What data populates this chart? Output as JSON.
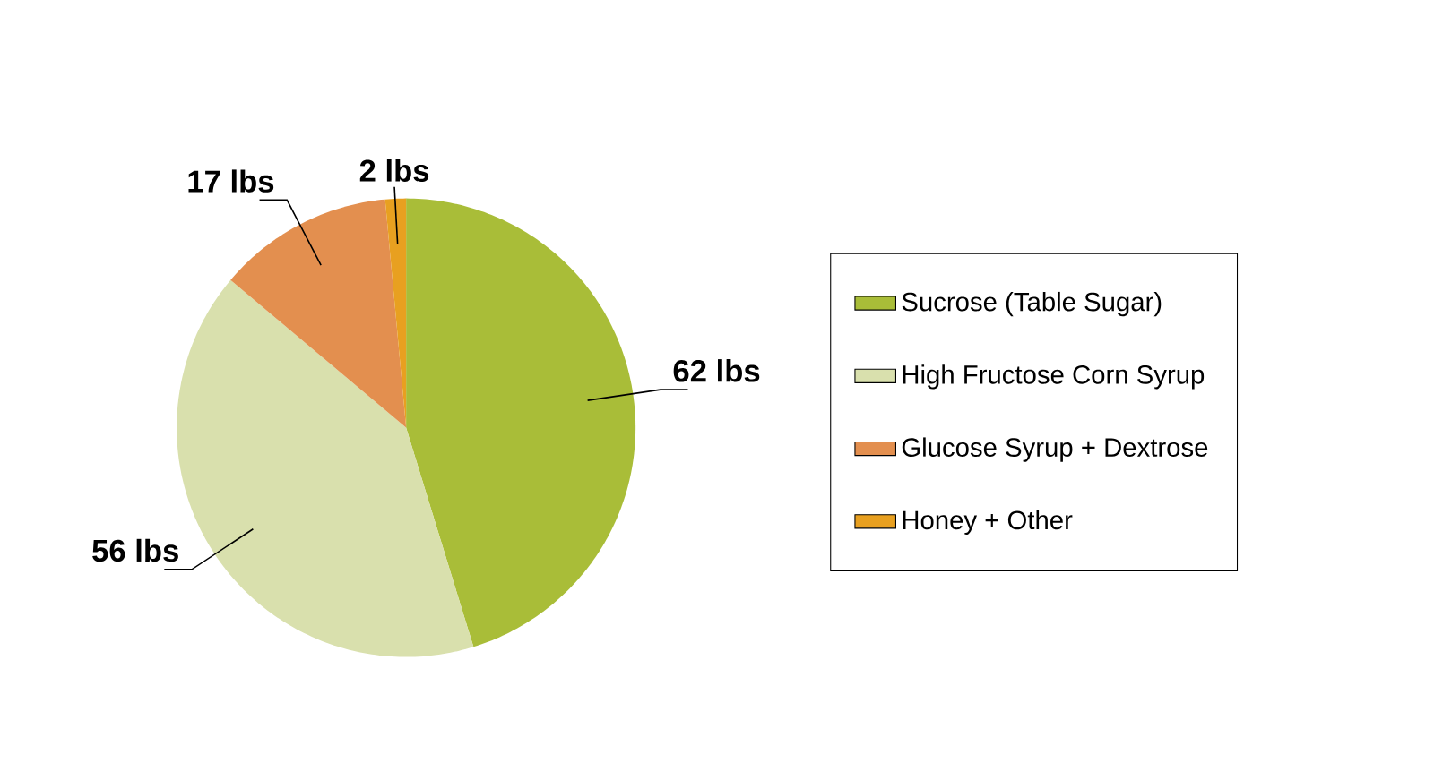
{
  "chart_data": {
    "type": "pie",
    "categories": [
      "Sucrose (Table Sugar)",
      "High Fructose Corn Syrup",
      "Glucose Syrup + Dextrose",
      "Honey + Other"
    ],
    "values": [
      62,
      56,
      17,
      2
    ],
    "value_labels": [
      "62 lbs",
      "56 lbs",
      "17 lbs",
      "2 lbs"
    ],
    "colors": [
      "#a9bd38",
      "#d9e0ad",
      "#e38f4f",
      "#e8a020"
    ],
    "legend": "right"
  }
}
